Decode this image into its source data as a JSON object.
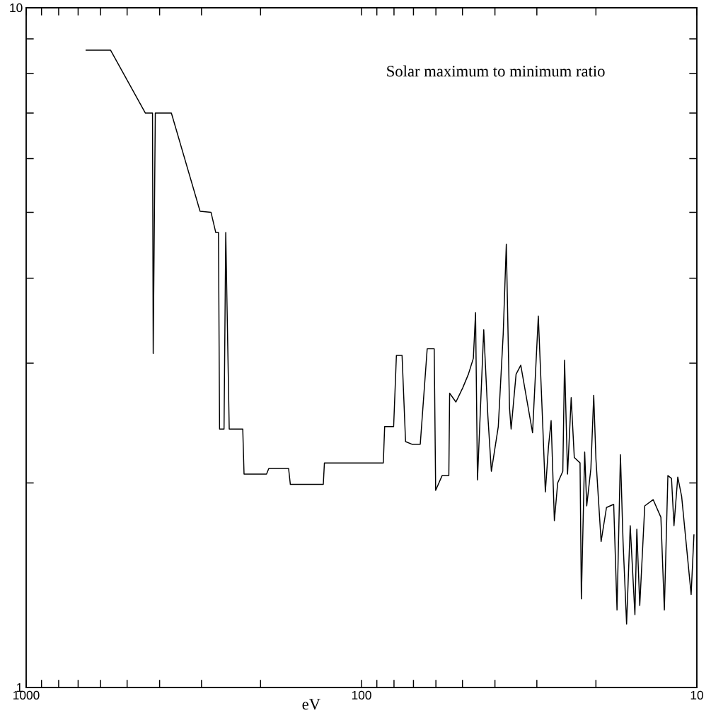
{
  "chart_data": {
    "type": "line",
    "xlabel": "eV",
    "annotations": [
      "Solar maximum to minimum ratio"
    ],
    "log": "xy",
    "xlim": [
      1000,
      10
    ],
    "ylim": [
      1,
      10
    ],
    "xticks": [
      1000,
      {
        "value": 900,
        "label": null
      },
      {
        "value": 800,
        "label": null
      },
      {
        "value": 700,
        "label": null
      },
      {
        "value": 600,
        "label": null
      },
      {
        "value": 500,
        "label": null
      },
      {
        "value": 400,
        "label": null
      },
      {
        "value": 300,
        "label": null
      },
      {
        "value": 200,
        "label": null
      },
      100,
      {
        "value": 90,
        "label": null
      },
      {
        "value": 80,
        "label": null
      },
      {
        "value": 70,
        "label": null
      },
      {
        "value": 60,
        "label": null
      },
      {
        "value": 50,
        "label": null
      },
      {
        "value": 40,
        "label": null
      },
      {
        "value": 30,
        "label": null
      },
      {
        "value": 20,
        "label": null
      },
      10
    ],
    "yticks": [
      1,
      {
        "value": 2,
        "label": null
      },
      {
        "value": 3,
        "label": null
      },
      {
        "value": 4,
        "label": null
      },
      {
        "value": 5,
        "label": null
      },
      {
        "value": 6,
        "label": null
      },
      {
        "value": 7,
        "label": null
      },
      {
        "value": 8,
        "label": null
      },
      {
        "value": 9,
        "label": null
      },
      10
    ],
    "series": [
      {
        "color": "#000000",
        "x": [
          665,
          560,
          441,
          420,
          418,
          412,
          369,
          303,
          281,
          272,
          267,
          265,
          257,
          254,
          248,
          226,
          224,
          192,
          189,
          165,
          163,
          130,
          129,
          86.1,
          85.3,
          80.2,
          78.7,
          75.7,
          73.9,
          70.8,
          66.8,
          63.7,
          60.7,
          60.1,
          57.5,
          54.9,
          54.6,
          52.3,
          49.9,
          48.0,
          46.4,
          45.7,
          45.1,
          43.2,
          42.0,
          41.0,
          39.1,
          37.8,
          37.0,
          36.2,
          35.8,
          34.6,
          33.5,
          30.9,
          29.7,
          28.8,
          28.3,
          27.7,
          27.2,
          26.6,
          26.0,
          25.1,
          24.8,
          24.3,
          23.9,
          23.7,
          23.2,
          22.3,
          22.1,
          21.6,
          21.3,
          20.7,
          20.3,
          20.0,
          19.3,
          18.6,
          17.7,
          17.3,
          16.9,
          16.6,
          16.2,
          15.8,
          15.3,
          15.1,
          14.8,
          14.3,
          13.5,
          12.8,
          12.5,
          12.2,
          11.9,
          11.7,
          11.4,
          11.1,
          10.6,
          10.4,
          10.2
        ],
        "values": [
          8.66,
          8.66,
          7.0,
          7.0,
          3.1,
          7.0,
          7.0,
          5.02,
          5.0,
          4.67,
          4.67,
          2.4,
          2.4,
          4.67,
          2.4,
          2.4,
          2.06,
          2.06,
          2.1,
          2.1,
          1.99,
          1.99,
          2.14,
          2.14,
          2.42,
          2.42,
          3.08,
          3.08,
          2.3,
          2.28,
          2.28,
          3.15,
          3.15,
          1.95,
          2.05,
          2.05,
          2.71,
          2.63,
          2.76,
          2.89,
          3.05,
          3.56,
          2.02,
          3.36,
          2.51,
          2.08,
          2.42,
          3.31,
          4.49,
          2.58,
          2.4,
          2.89,
          2.98,
          2.37,
          3.52,
          2.42,
          1.94,
          2.26,
          2.47,
          1.76,
          2.0,
          2.08,
          3.03,
          2.06,
          2.44,
          2.67,
          2.18,
          2.14,
          1.35,
          2.22,
          1.85,
          2.1,
          2.69,
          2.17,
          1.64,
          1.84,
          1.86,
          1.3,
          2.2,
          1.64,
          1.24,
          1.73,
          1.28,
          1.71,
          1.32,
          1.85,
          1.89,
          1.78,
          1.3,
          2.05,
          2.03,
          1.73,
          2.04,
          1.91,
          1.51,
          1.37,
          1.68
        ]
      }
    ]
  }
}
